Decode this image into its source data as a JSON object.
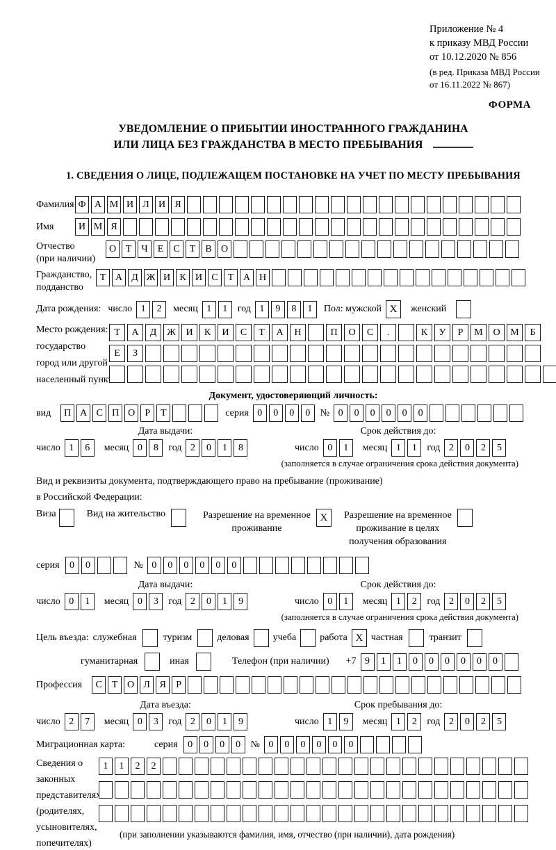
{
  "colors": {
    "ink": "#000000",
    "box_border": "#1c1c1c",
    "paper": "#ffffff"
  },
  "header": {
    "lines": [
      "Приложение № 4",
      "к приказу МВД России",
      "от 10.12.2020 № 856"
    ],
    "sub_lines": [
      "(в ред. Приказа МВД России",
      "от 16.11.2022 № 867)"
    ],
    "form_label": "ФОРМА"
  },
  "title": {
    "line1": "УВЕДОМЛЕНИЕ О ПРИБЫТИИ ИНОСТРАННОГО ГРАЖДАНИНА",
    "line2": "ИЛИ ЛИЦА БЕЗ ГРАЖДАНСТВА В МЕСТО ПРЕБЫВАНИЯ"
  },
  "section1": {
    "heading": "1. СВЕДЕНИЯ О ЛИЦЕ, ПОДЛЕЖАЩЕМ ПОСТАНОВКЕ НА УЧЕТ ПО МЕСТУ ПРЕБЫВАНИЯ"
  },
  "person": {
    "surname": {
      "label": "Фамилия",
      "text": "ФАМИЛИЯ",
      "count": 28
    },
    "given_name": {
      "label": "Имя",
      "text": "ИМЯ",
      "count": 28
    },
    "patronymic": {
      "label": "Отчество",
      "label2": "(при наличии)",
      "text": "ОТЧЕСТВО",
      "count": 26
    },
    "citizenship": {
      "label": "Гражданство,",
      "label2": "подданство",
      "text": "ТАДЖИКИСТАН",
      "count": 27
    },
    "birth_date": {
      "label": "Дата рождения:",
      "day_label": "число",
      "day": {
        "text": "12",
        "count": 2
      },
      "month_label": "месяц",
      "month": {
        "text": "11",
        "count": 2
      },
      "year_label": "год",
      "year": {
        "text": "1981",
        "count": 4
      }
    },
    "sex": {
      "male_label": "Пол: мужской",
      "male": "X",
      "female_label": "женский",
      "female": ""
    },
    "birth_place": {
      "label_lines": [
        "Место рождения:",
        "государство",
        "город или другой",
        "населенный пункт"
      ],
      "rows": [
        {
          "text": "ТАДЖИКИСТАН ПОС. КУРМОМБ",
          "count": 24
        },
        {
          "text": "ЕЗ",
          "count": 24
        },
        {
          "text": "",
          "count": 25
        }
      ]
    }
  },
  "identity_doc": {
    "heading": "Документ, удостоверяющий личность:",
    "kind": {
      "label": "вид",
      "text": "ПАСПОРТ",
      "count": 10
    },
    "series": {
      "label": "серия",
      "text": "0000",
      "count": 4
    },
    "number": {
      "label": "№",
      "text": "000000",
      "count": 12
    },
    "issue": {
      "label": "Дата выдачи:",
      "day_label": "число",
      "day": {
        "text": "16",
        "count": 2
      },
      "month_label": "месяц",
      "month": {
        "text": "08",
        "count": 2
      },
      "year_label": "год",
      "year": {
        "text": "2018",
        "count": 4
      }
    },
    "valid": {
      "label": "Срок действия до:",
      "day_label": "число",
      "day": {
        "text": "01",
        "count": 2
      },
      "month_label": "месяц",
      "month": {
        "text": "11",
        "count": 2
      },
      "year_label": "год",
      "year": {
        "text": "2025",
        "count": 4
      }
    },
    "note": "(заполняется в случае ограничения срока действия документа)"
  },
  "stay_doc": {
    "intro1": "Вид и реквизиты документа, подтверждающего право на пребывание (проживание)",
    "intro2": "в Российской Федерации:",
    "visa": {
      "label": "Виза",
      "value": ""
    },
    "residence_permit": {
      "label": "Вид на жительство",
      "value": ""
    },
    "temp_residence": {
      "label_lines": [
        "Разрешение на временное",
        "проживание"
      ],
      "value": "X"
    },
    "temp_residence_edu": {
      "label_lines": [
        "Разрешение на временное",
        "проживание в целях",
        "получения образования"
      ],
      "value": ""
    },
    "series": {
      "label": "серия",
      "text": "00",
      "count": 4
    },
    "number": {
      "label": "№",
      "text": "000000",
      "count": 14
    },
    "issue": {
      "label": "Дата выдачи:",
      "day_label": "число",
      "day": {
        "text": "01",
        "count": 2
      },
      "month_label": "месяц",
      "month": {
        "text": "03",
        "count": 2
      },
      "year_label": "год",
      "year": {
        "text": "2019",
        "count": 4
      }
    },
    "valid": {
      "label": "Срок действия до:",
      "day_label": "число",
      "day": {
        "text": "01",
        "count": 2
      },
      "month_label": "месяц",
      "month": {
        "text": "12",
        "count": 2
      },
      "year_label": "год",
      "year": {
        "text": "2025",
        "count": 4
      }
    },
    "note": "(заполняется в случае ограничения срока действия документа)"
  },
  "visit": {
    "purpose_label": "Цель въезда:",
    "purposes": [
      {
        "label": "служебная",
        "value": ""
      },
      {
        "label": "туризм",
        "value": ""
      },
      {
        "label": "деловая",
        "value": ""
      },
      {
        "label": "учеба",
        "value": ""
      },
      {
        "label": "работа",
        "value": "X"
      },
      {
        "label": "частная",
        "value": ""
      },
      {
        "label": "транзит",
        "value": ""
      },
      {
        "label": "гуманитарная",
        "value": ""
      },
      {
        "label": "иная",
        "value": ""
      }
    ],
    "phone": {
      "label": "Телефон (при наличии)",
      "prefix": "+7",
      "text": "911000000",
      "count": 10
    },
    "profession": {
      "label": "Профессия",
      "text": "СТОЛЯР",
      "count": 27
    },
    "entry": {
      "label": "Дата въезда:",
      "day_label": "число",
      "day": {
        "text": "27",
        "count": 2
      },
      "month_label": "месяц",
      "month": {
        "text": "03",
        "count": 2
      },
      "year_label": "год",
      "year": {
        "text": "2019",
        "count": 4
      }
    },
    "stay_until": {
      "label": "Срок пребывания до:",
      "day_label": "число",
      "day": {
        "text": "19",
        "count": 2
      },
      "month_label": "месяц",
      "month": {
        "text": "12",
        "count": 2
      },
      "year_label": "год",
      "year": {
        "text": "2025",
        "count": 4
      }
    },
    "migration_card": {
      "label": "Миграционная карта:",
      "series_label": "серия",
      "series": {
        "text": "0000",
        "count": 4
      },
      "number_label": "№",
      "number": {
        "text": "000000",
        "count": 10
      }
    }
  },
  "representatives": {
    "label_lines": [
      "Сведения о",
      "законных",
      "представителях",
      "(родителях,",
      "усыновителях,",
      "попечителях)"
    ],
    "rows": [
      {
        "text": "1122",
        "count": 27
      },
      {
        "text": "",
        "count": 27
      },
      {
        "text": "",
        "count": 27
      }
    ],
    "note": "(при заполнении указываются фамилия, имя, отчество (при наличии), дата рождения)"
  }
}
